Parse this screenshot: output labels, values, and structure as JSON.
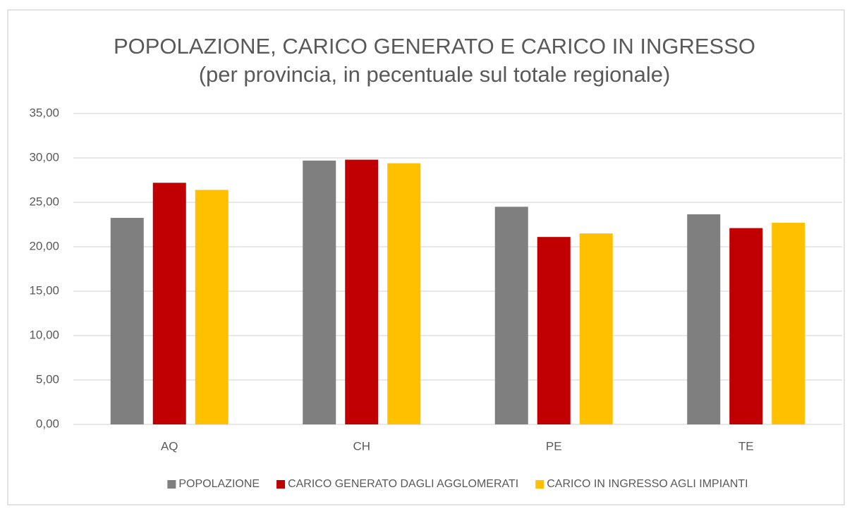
{
  "chart_data": {
    "type": "bar",
    "title": "POPOLAZIONE, CARICO GENERATO E CARICO IN INGRESSO",
    "subtitle": "(per provincia, in pecentuale sul totale regionale)",
    "categories": [
      "AQ",
      "CH",
      "PE",
      "TE"
    ],
    "series": [
      {
        "name": "POPOLAZIONE",
        "color": "#7f7f7f",
        "values": [
          23.25,
          29.7,
          24.5,
          23.65
        ]
      },
      {
        "name": "CARICO GENERATO DAGLI AGGLOMERATI",
        "color": "#c00000",
        "values": [
          27.2,
          29.8,
          21.1,
          22.1
        ]
      },
      {
        "name": "CARICO IN INGRESSO AGLI IMPIANTI",
        "color": "#ffc000",
        "values": [
          26.4,
          29.4,
          21.5,
          22.7
        ]
      }
    ],
    "ylim": [
      0,
      35
    ],
    "yticks": [
      {
        "value": 0,
        "label": "0,00"
      },
      {
        "value": 5,
        "label": "5,00"
      },
      {
        "value": 10,
        "label": "10,00"
      },
      {
        "value": 15,
        "label": "15,00"
      },
      {
        "value": 20,
        "label": "20,00"
      },
      {
        "value": 25,
        "label": "25,00"
      },
      {
        "value": 30,
        "label": "30,00"
      },
      {
        "value": 35,
        "label": "35,00"
      }
    ],
    "grid": true,
    "legend": "bottom"
  }
}
